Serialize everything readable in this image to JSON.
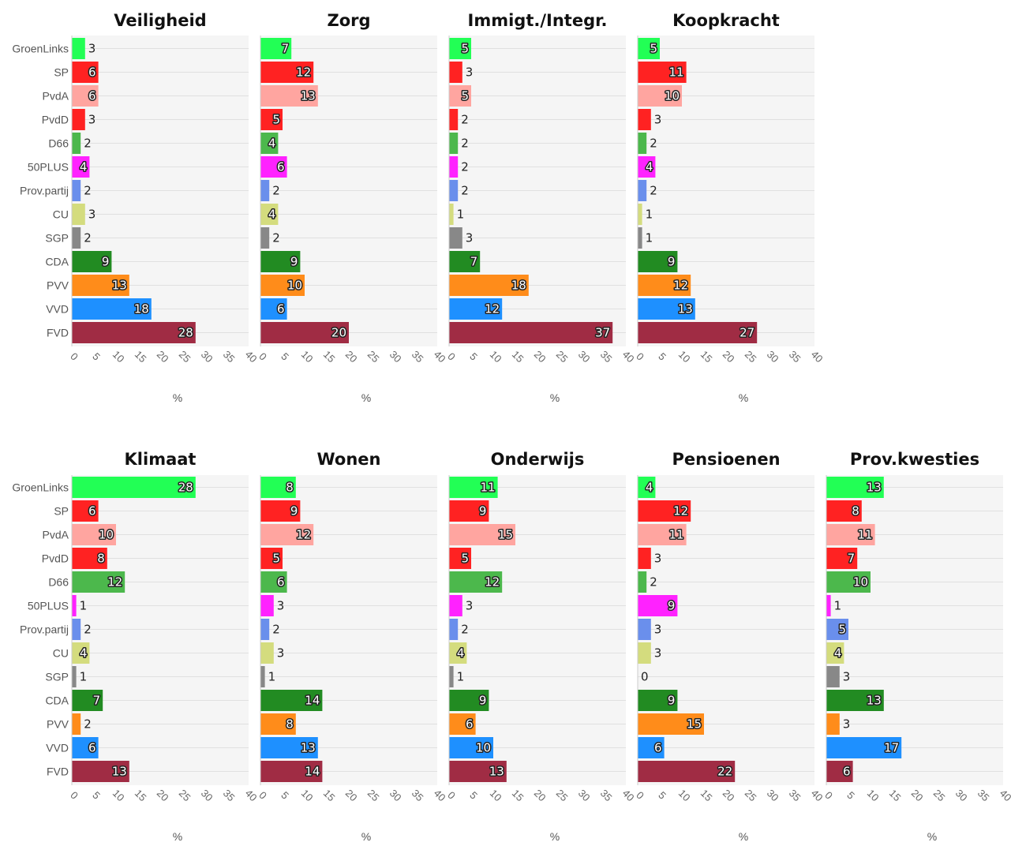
{
  "chart_data": {
    "type": "bar",
    "orientation": "horizontal",
    "categories": [
      "GroenLinks",
      "SP",
      "PvdA",
      "PvdD",
      "D66",
      "50PLUS",
      "Prov.partij",
      "CU",
      "SGP",
      "CDA",
      "PVV",
      "VVD",
      "FVD"
    ],
    "colors": [
      "#22ff55",
      "#ff2222",
      "#ffa5a0",
      "#ff2222",
      "#4cb84c",
      "#ff22ff",
      "#6a8fec",
      "#d4dc7e",
      "#888888",
      "#228b22",
      "#ff8c1a",
      "#1e90ff",
      "#a02c44"
    ],
    "xlim": [
      0,
      40
    ],
    "xticks": [
      "0",
      "5",
      "10",
      "15",
      "20",
      "25",
      "30",
      "35",
      "40"
    ],
    "xlabel": "%",
    "panels": [
      {
        "title": "Veiligheid",
        "values": [
          3,
          6,
          6,
          3,
          2,
          4,
          2,
          3,
          2,
          9,
          13,
          18,
          28
        ]
      },
      {
        "title": "Zorg",
        "values": [
          7,
          12,
          13,
          5,
          4,
          6,
          2,
          4,
          2,
          9,
          10,
          6,
          20
        ]
      },
      {
        "title": "Immigt./Integr.",
        "values": [
          5,
          3,
          5,
          2,
          2,
          2,
          2,
          1,
          3,
          7,
          18,
          12,
          37
        ]
      },
      {
        "title": "Koopkracht",
        "values": [
          5,
          11,
          10,
          3,
          2,
          4,
          2,
          1,
          1,
          9,
          12,
          13,
          27
        ]
      },
      {
        "title": "Klimaat",
        "values": [
          28,
          6,
          10,
          8,
          12,
          1,
          2,
          4,
          1,
          7,
          2,
          6,
          13
        ]
      },
      {
        "title": "Wonen",
        "values": [
          8,
          9,
          12,
          5,
          6,
          3,
          2,
          3,
          1,
          14,
          8,
          13,
          14
        ]
      },
      {
        "title": "Onderwijs",
        "values": [
          11,
          9,
          15,
          5,
          12,
          3,
          2,
          4,
          1,
          9,
          6,
          10,
          13
        ]
      },
      {
        "title": "Pensioenen",
        "values": [
          4,
          12,
          11,
          3,
          2,
          9,
          3,
          3,
          0,
          9,
          15,
          6,
          22
        ]
      },
      {
        "title": "Prov.kwesties",
        "values": [
          13,
          8,
          11,
          7,
          10,
          1,
          5,
          4,
          3,
          13,
          3,
          17,
          6
        ]
      }
    ]
  }
}
